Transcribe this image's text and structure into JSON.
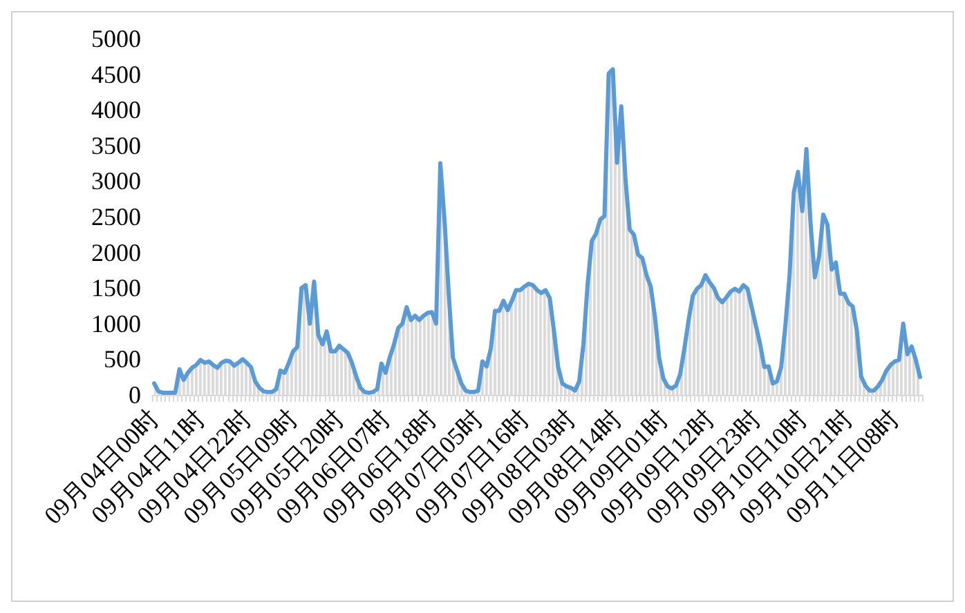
{
  "chart_data": {
    "type": "area",
    "categories": [
      "09月04日00时",
      null,
      null,
      null,
      null,
      null,
      null,
      null,
      null,
      null,
      null,
      "09月04日11时",
      null,
      null,
      null,
      null,
      null,
      null,
      null,
      null,
      null,
      null,
      "09月04日22时",
      null,
      null,
      null,
      null,
      null,
      null,
      null,
      null,
      null,
      null,
      "09月05日09时",
      null,
      null,
      null,
      null,
      null,
      null,
      null,
      null,
      null,
      null,
      "09月05日20时",
      null,
      null,
      null,
      null,
      null,
      null,
      null,
      null,
      null,
      null,
      "09月06日07时",
      null,
      null,
      null,
      null,
      null,
      null,
      null,
      null,
      null,
      null,
      "09月06日18时",
      null,
      null,
      null,
      null,
      null,
      null,
      null,
      null,
      null,
      null,
      "09月07日05时",
      null,
      null,
      null,
      null,
      null,
      null,
      null,
      null,
      null,
      null,
      "09月07日16时",
      null,
      null,
      null,
      null,
      null,
      null,
      null,
      null,
      null,
      null,
      "09月08日03时",
      null,
      null,
      null,
      null,
      null,
      null,
      null,
      null,
      null,
      null,
      "09月08日14时",
      null,
      null,
      null,
      null,
      null,
      null,
      null,
      null,
      null,
      null,
      "09月09日01时",
      null,
      null,
      null,
      null,
      null,
      null,
      null,
      null,
      null,
      null,
      "09月09日12时",
      null,
      null,
      null,
      null,
      null,
      null,
      null,
      null,
      null,
      null,
      "09月09日23时",
      null,
      null,
      null,
      null,
      null,
      null,
      null,
      null,
      null,
      null,
      "09月10日10时",
      null,
      null,
      null,
      null,
      null,
      null,
      null,
      null,
      null,
      null,
      "09月10日21时",
      null,
      null,
      null,
      null,
      null,
      null,
      null,
      null,
      null,
      null,
      "09月11日08时",
      null,
      null,
      null,
      null,
      null,
      null
    ],
    "values": [
      160,
      50,
      30,
      30,
      30,
      30,
      360,
      210,
      310,
      380,
      420,
      490,
      450,
      470,
      420,
      380,
      450,
      480,
      470,
      410,
      450,
      500,
      450,
      390,
      190,
      100,
      50,
      40,
      40,
      80,
      340,
      310,
      450,
      610,
      670,
      1500,
      1540,
      1000,
      1590,
      840,
      710,
      890,
      610,
      610,
      690,
      640,
      590,
      450,
      260,
      100,
      40,
      30,
      40,
      80,
      440,
      310,
      530,
      710,
      940,
      1000,
      1230,
      1050,
      1110,
      1050,
      1110,
      1150,
      1160,
      1000,
      3250,
      2450,
      1420,
      520,
      340,
      160,
      60,
      40,
      40,
      60,
      470,
      400,
      650,
      1180,
      1180,
      1320,
      1190,
      1320,
      1470,
      1470,
      1520,
      1560,
      1540,
      1470,
      1430,
      1470,
      1360,
      900,
      390,
      160,
      120,
      100,
      60,
      190,
      710,
      1550,
      2160,
      2260,
      2460,
      2510,
      4510,
      4570,
      3260,
      4050,
      3030,
      2320,
      2250,
      1970,
      1920,
      1680,
      1520,
      1100,
      520,
      230,
      120,
      90,
      130,
      290,
      650,
      1050,
      1390,
      1490,
      1540,
      1680,
      1580,
      1500,
      1360,
      1300,
      1370,
      1450,
      1490,
      1450,
      1540,
      1490,
      1230,
      970,
      710,
      390,
      400,
      160,
      190,
      390,
      970,
      1680,
      2840,
      3130,
      2580,
      3450,
      2390,
      1650,
      1940,
      2530,
      2390,
      1760,
      1860,
      1420,
      1420,
      1290,
      1240,
      900,
      260,
      130,
      60,
      60,
      120,
      210,
      340,
      420,
      470,
      490,
      1000,
      570,
      680,
      490,
      250
    ],
    "color": "#5b9bd5",
    "ylim": [
      0,
      5000
    ],
    "yticks": [
      0,
      500,
      1000,
      1500,
      2000,
      2500,
      3000,
      3500,
      4000,
      4500,
      5000
    ],
    "marker": "none",
    "line_style": "solid"
  }
}
